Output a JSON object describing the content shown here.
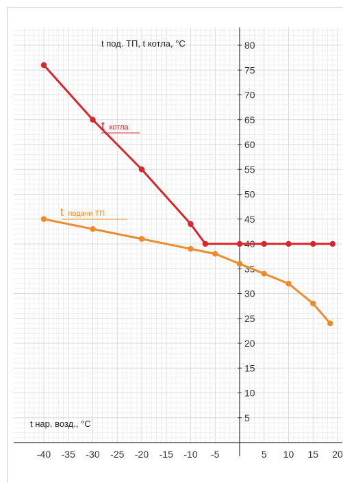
{
  "chart_data": {
    "type": "line",
    "y_title": "t под. ТП, t котла, °С",
    "x_title": "t нар. возд., °С",
    "x_ticks": [
      -40,
      -35,
      -30,
      -25,
      -20,
      -15,
      -10,
      -5,
      0,
      5,
      10,
      15,
      20
    ],
    "x_tick_labels": [
      "-40",
      "-35",
      "-30",
      "-25",
      "-20",
      "-15",
      "-10",
      "-5",
      "",
      "5",
      "10",
      "15",
      "20"
    ],
    "y_ticks": [
      5,
      10,
      15,
      20,
      25,
      30,
      35,
      40,
      45,
      50,
      55,
      60,
      65,
      70,
      75,
      80
    ],
    "y_tick_labels": [
      "5",
      "10",
      "15",
      "20",
      "25",
      "30",
      "35",
      "40",
      "45",
      "50",
      "55",
      "60",
      "65",
      "70",
      "75",
      "80"
    ],
    "xlim": [
      -42,
      20
    ],
    "ylim": [
      0,
      82
    ],
    "grid": true,
    "series": [
      {
        "name": "t котла",
        "label_main": "t",
        "label_sub": "котла",
        "color": "#d7262d",
        "points": [
          [
            -40,
            76
          ],
          [
            -30,
            65
          ],
          [
            -20,
            55
          ],
          [
            -10,
            44
          ],
          [
            -7,
            40
          ],
          [
            0,
            40
          ],
          [
            5,
            40
          ],
          [
            10,
            40
          ],
          [
            15,
            40
          ],
          [
            19,
            40
          ]
        ]
      },
      {
        "name": "t подачи ТП",
        "label_main": "t",
        "label_sub": "подачи ТП",
        "color": "#ee8b2c",
        "points": [
          [
            -40,
            45
          ],
          [
            -30,
            43
          ],
          [
            -20,
            41
          ],
          [
            -10,
            39
          ],
          [
            -5,
            38
          ],
          [
            0,
            36
          ],
          [
            5,
            34
          ],
          [
            10,
            32
          ],
          [
            15,
            28
          ],
          [
            18.5,
            24
          ]
        ]
      }
    ]
  }
}
